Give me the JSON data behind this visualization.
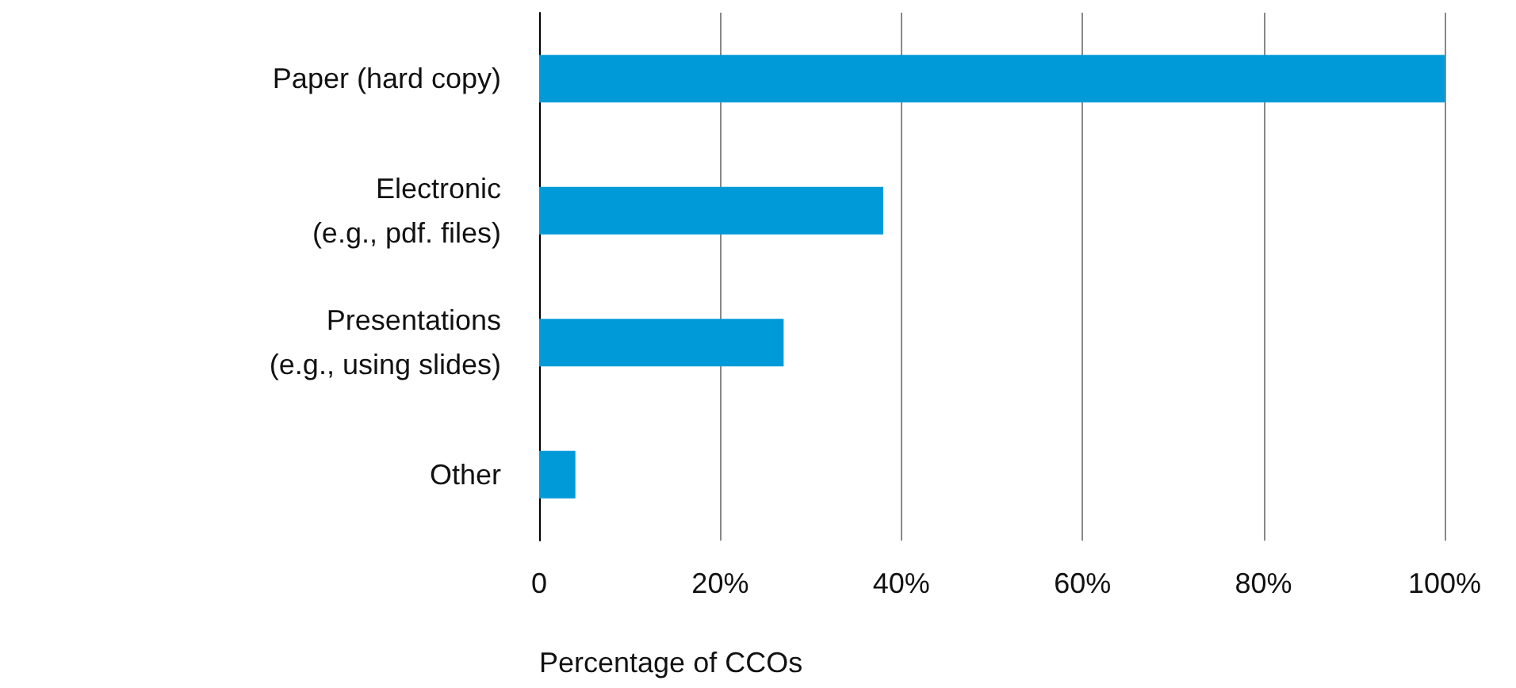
{
  "chart_data": {
    "type": "bar",
    "orientation": "horizontal",
    "xlabel": "Percentage of CCOs",
    "categories": [
      "Paper (hard copy)",
      "Electronic (e.g., pdf. files)",
      "Presentations (e.g., using slides)",
      "Other"
    ],
    "values": [
      100,
      38,
      27,
      4
    ],
    "color": "#009ad9",
    "xlim": [
      0,
      100
    ],
    "xticks": [
      0,
      {
        "value": 20,
        "label": "20%"
      },
      {
        "value": 40,
        "label": "40%"
      },
      {
        "value": 60,
        "label": "60%"
      },
      {
        "value": 80,
        "label": "80%"
      },
      {
        "value": 100,
        "label": "100%"
      }
    ],
    "grid": "x"
  }
}
